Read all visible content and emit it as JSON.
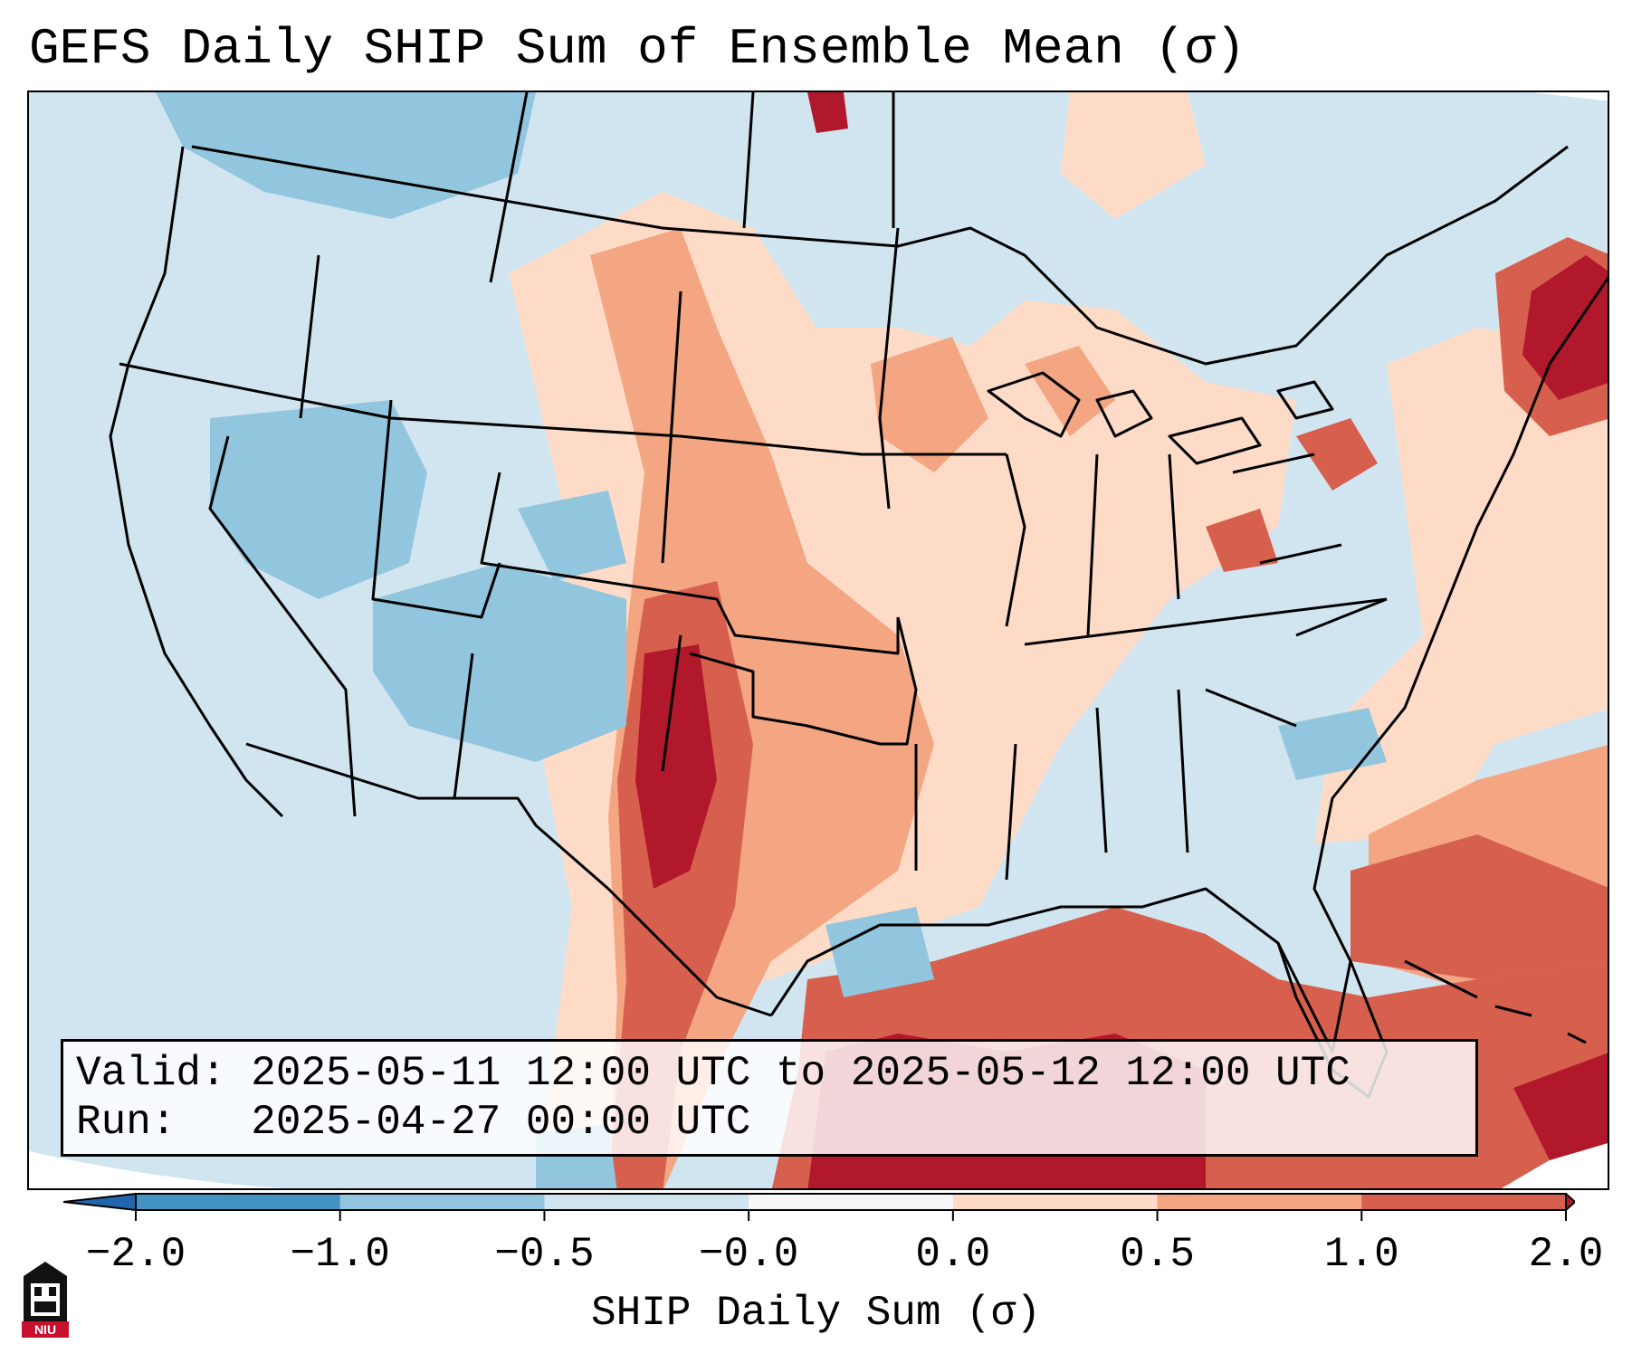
{
  "title": "GEFS Daily SHIP Sum of Ensemble Mean (σ)",
  "info": {
    "valid_label": "Valid:",
    "valid_value": "2025-05-11 12:00 UTC to 2025-05-12 12:00 UTC",
    "run_label": "Run:",
    "run_value": "2025-04-27 00:00 UTC"
  },
  "colorbar": {
    "label": "SHIP Daily Sum (σ)",
    "ticks": [
      "−2.0",
      "−1.0",
      "−0.5",
      "−0.0",
      "0.0",
      "0.5",
      "1.0",
      "2.0"
    ],
    "colors": [
      "#4393c3",
      "#92c5de",
      "#d1e5f0",
      "#f7f7f7",
      "#fddbc7",
      "#f4a582",
      "#d6604d"
    ],
    "extend_low_color": "#2166ac",
    "extend_high_color": "#b2182b"
  },
  "logo": {
    "text": "NIU",
    "icon": "niu-logo-icon"
  },
  "map": {
    "background_color": "#d1e5f0",
    "outside_projection_color": "#ffffff"
  }
}
